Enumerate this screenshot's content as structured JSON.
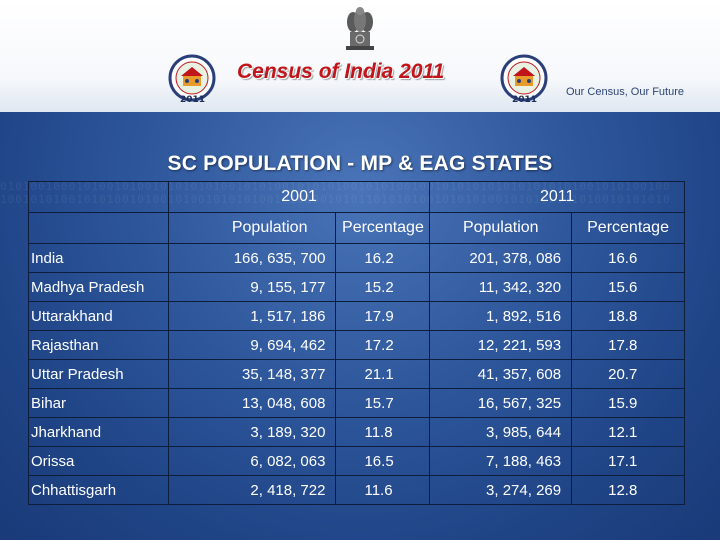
{
  "header": {
    "title": "Census of India  2011",
    "tagline": "Our Census,  Our Future",
    "logo_year": "2011"
  },
  "slide_title": "SC POPULATION - MP & EAG STATES",
  "table": {
    "year_headers": [
      "2001",
      "2011"
    ],
    "sub_headers": [
      "Population",
      "Percentage",
      "Population",
      "Percentage"
    ],
    "rows": [
      {
        "state": "India",
        "pop2001": "166, 635, 700",
        "pct2001": "16.2",
        "pop2011": "201, 378, 086",
        "pct2011": "16.6"
      },
      {
        "state": "Madhya Pradesh",
        "pop2001": "9, 155, 177",
        "pct2001": "15.2",
        "pop2011": "11, 342, 320",
        "pct2011": "15.6"
      },
      {
        "state": "Uttarakhand",
        "pop2001": "1, 517, 186",
        "pct2001": "17.9",
        "pop2011": "1, 892, 516",
        "pct2011": "18.8"
      },
      {
        "state": "Rajasthan",
        "pop2001": "9, 694, 462",
        "pct2001": "17.2",
        "pop2011": "12, 221, 593",
        "pct2011": "17.8"
      },
      {
        "state": "Uttar Pradesh",
        "pop2001": "35, 148, 377",
        "pct2001": "21.1",
        "pop2011": "41, 357, 608",
        "pct2011": "20.7"
      },
      {
        "state": "Bihar",
        "pop2001": "13, 048, 608",
        "pct2001": "15.7",
        "pop2011": "16, 567, 325",
        "pct2011": "15.9"
      },
      {
        "state": "Jharkhand",
        "pop2001": "3, 189, 320",
        "pct2001": "11.8",
        "pop2011": "3, 985, 644",
        "pct2011": "12.1"
      },
      {
        "state": "Orissa",
        "pop2001": "6, 082, 063",
        "pct2001": "16.5",
        "pop2011": "7, 188, 463",
        "pct2011": "17.1"
      },
      {
        "state": "Chhattisgarh",
        "pop2001": "2, 418, 722",
        "pct2001": "11.6",
        "pop2011": "3, 274, 269",
        "pct2011": "12.8"
      }
    ]
  },
  "colors": {
    "title_red": "#c0151b",
    "slide_blue": "#2f589d",
    "grid_line": "#0e1d3c"
  }
}
